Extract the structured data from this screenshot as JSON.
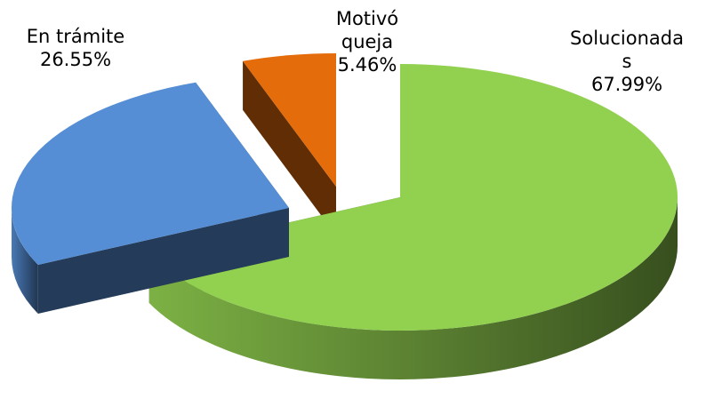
{
  "chart_data": {
    "type": "pie3d",
    "categories": [
      "Solucionadas",
      "En trámite",
      "Motivó queja"
    ],
    "values": [
      67.99,
      26.55,
      5.46
    ],
    "value_labels": [
      "67.99%",
      "26.55%",
      "5.46%"
    ],
    "colors": [
      "#92d050",
      "#558ed5",
      "#e46c0a"
    ]
  }
}
